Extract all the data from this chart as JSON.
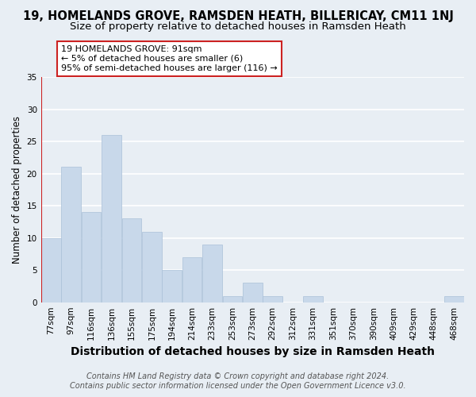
{
  "title1": "19, HOMELANDS GROVE, RAMSDEN HEATH, BILLERICAY, CM11 1NJ",
  "title2": "Size of property relative to detached houses in Ramsden Heath",
  "xlabel": "Distribution of detached houses by size in Ramsden Heath",
  "ylabel": "Number of detached properties",
  "categories": [
    "77sqm",
    "97sqm",
    "116sqm",
    "136sqm",
    "155sqm",
    "175sqm",
    "194sqm",
    "214sqm",
    "233sqm",
    "253sqm",
    "273sqm",
    "292sqm",
    "312sqm",
    "331sqm",
    "351sqm",
    "370sqm",
    "390sqm",
    "409sqm",
    "429sqm",
    "448sqm",
    "468sqm"
  ],
  "values": [
    10,
    21,
    14,
    26,
    13,
    11,
    5,
    7,
    9,
    1,
    3,
    1,
    0,
    1,
    0,
    0,
    0,
    0,
    0,
    0,
    1
  ],
  "bar_color": "#c8d8ea",
  "bar_edge_color": "#aac0d8",
  "annotation_title": "19 HOMELANDS GROVE: 91sqm",
  "annotation_line1": "← 5% of detached houses are smaller (6)",
  "annotation_line2": "95% of semi-detached houses are larger (116) →",
  "annotation_box_facecolor": "#ffffff",
  "annotation_box_edgecolor": "#cc2222",
  "marker_line_color": "#cc2222",
  "ylim": [
    0,
    35
  ],
  "yticks": [
    0,
    5,
    10,
    15,
    20,
    25,
    30,
    35
  ],
  "footer1": "Contains HM Land Registry data © Crown copyright and database right 2024.",
  "footer2": "Contains public sector information licensed under the Open Government Licence v3.0.",
  "fig_facecolor": "#e8eef4",
  "ax_facecolor": "#e8eef4",
  "grid_color": "#ffffff",
  "title1_fontsize": 10.5,
  "title2_fontsize": 9.5,
  "xlabel_fontsize": 10,
  "ylabel_fontsize": 8.5,
  "tick_fontsize": 7.5,
  "annot_fontsize": 8,
  "footer_fontsize": 7
}
